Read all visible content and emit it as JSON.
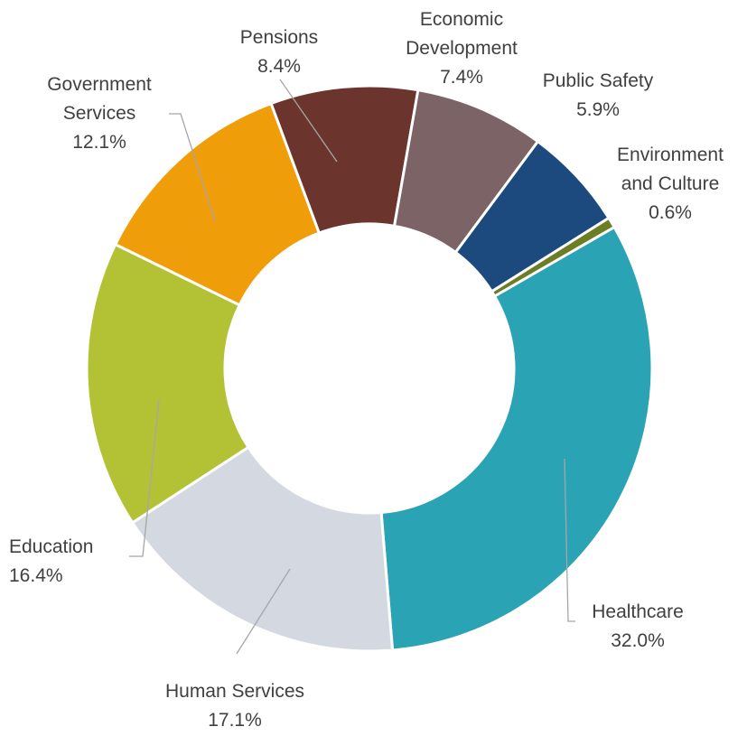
{
  "chart_data": {
    "type": "pie",
    "subtype": "donut",
    "title": "",
    "unit": "%",
    "legend": "none",
    "slices": [
      {
        "label_lines": [
          "Healthcare"
        ],
        "value_text": "32.0%",
        "value": 32.0,
        "color": "#2aa3b4"
      },
      {
        "label_lines": [
          "Human Services"
        ],
        "value_text": "17.1%",
        "value": 17.1,
        "color": "#d4d8e0"
      },
      {
        "label_lines": [
          "Education"
        ],
        "value_text": "16.4%",
        "value": 16.4,
        "color": "#b3c235"
      },
      {
        "label_lines": [
          "Government",
          "Services"
        ],
        "value_text": "12.1%",
        "value": 12.1,
        "color": "#f09d0a"
      },
      {
        "label_lines": [
          "Pensions"
        ],
        "value_text": "8.4%",
        "value": 8.4,
        "color": "#6b342d"
      },
      {
        "label_lines": [
          "Economic",
          "Development"
        ],
        "value_text": "7.4%",
        "value": 7.4,
        "color": "#7b6366"
      },
      {
        "label_lines": [
          "Public Safety"
        ],
        "value_text": "5.9%",
        "value": 5.9,
        "color": "#1c4a7f"
      },
      {
        "label_lines": [
          "Environment",
          "and Culture"
        ],
        "value_text": "0.6%",
        "value": 0.6,
        "color": "#6c7d23"
      }
    ]
  }
}
